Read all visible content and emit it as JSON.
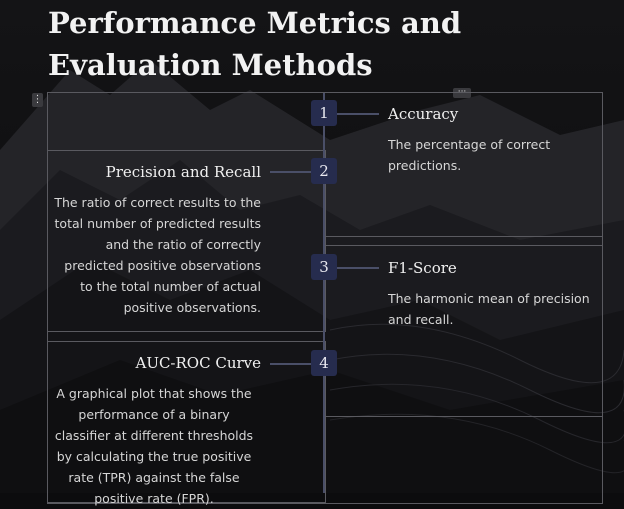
{
  "page": {
    "title": "Performance Metrics and Evaluation Methods",
    "handle_glyph": "⋮",
    "more_glyph": "···"
  },
  "timeline": {
    "items": [
      {
        "number": "1",
        "heading": "Accuracy",
        "description": "The percentage of correct predictions.",
        "side": "right"
      },
      {
        "number": "2",
        "heading": "Precision and Recall",
        "description": "The ratio of correct results to the total number of predicted results and the ratio of correctly predicted positive observations to the total number of actual positive observations.",
        "side": "left"
      },
      {
        "number": "3",
        "heading": "F1-Score",
        "description": "The harmonic mean of precision and recall.",
        "side": "right"
      },
      {
        "number": "4",
        "heading": "AUC-ROC Curve",
        "description": "A graphical plot that shows the performance of a binary classifier at different thresholds by calculating the true positive rate (TPR) against the false positive rate (FPR).",
        "side": "left"
      }
    ]
  },
  "colors": {
    "background": "#0c0c0e",
    "badge": "#262c4e",
    "connector": "#4a4f68"
  }
}
